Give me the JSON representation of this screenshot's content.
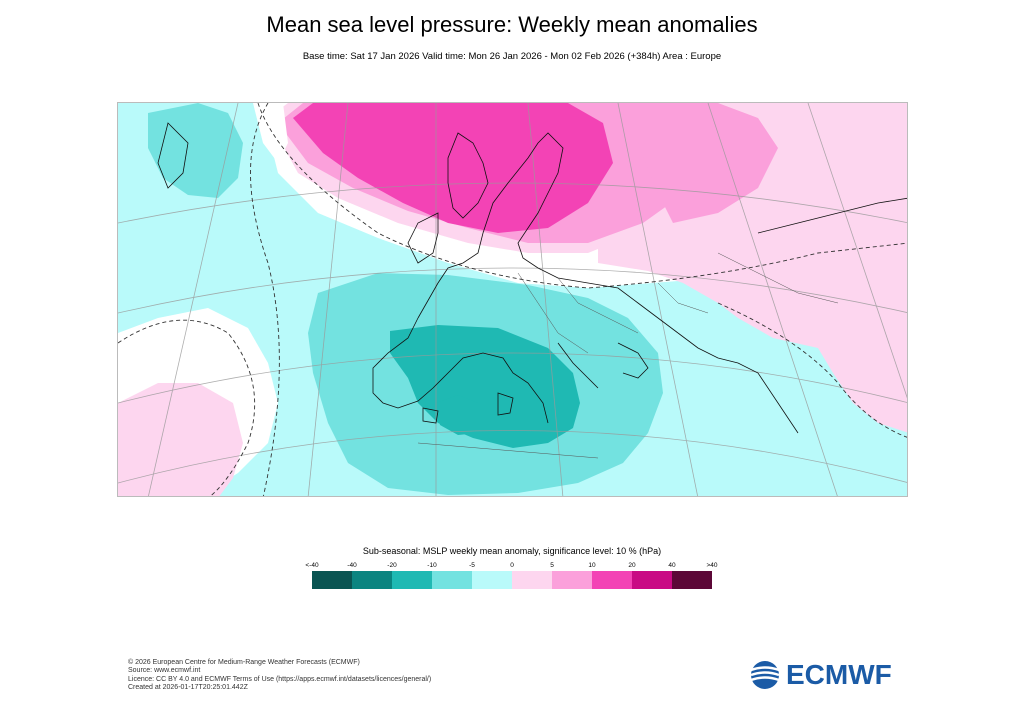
{
  "title": "Mean sea level pressure: Weekly mean anomalies",
  "subtitle": "Base time: Sat 17 Jan 2026 Valid time: Mon 26 Jan 2026 - Mon 02 Feb 2026 (+384h) Area : Europe",
  "map": {
    "area": "Europe",
    "parameter": "MSLP weekly mean anomaly",
    "units": "hPa",
    "features": [
      "positive anomaly over Scandinavia and North Sea",
      "negative anomaly over western Mediterranean and Iberia",
      "negative anomaly near Greenland",
      "positive anomaly over eastern Europe and Russia",
      "positive anomaly over mid-Atlantic"
    ]
  },
  "legend": {
    "title": "Sub-seasonal: MSLP weekly mean anomaly, significance level: 10 % (hPa)",
    "ticks": [
      "<-40",
      "-40",
      "-20",
      "-10",
      "-5",
      "0",
      "5",
      "10",
      "20",
      "40",
      ">40"
    ],
    "colors": [
      "#0a5452",
      "#0b8480",
      "#1fb9b3",
      "#73e2e0",
      "#b9fafa",
      "#fdd6ef",
      "#fba0db",
      "#f343b5",
      "#c90a84",
      "#5c0737"
    ]
  },
  "footer": {
    "lines": [
      "© 2026 European Centre for Medium-Range Weather Forecasts (ECMWF)",
      "Source: www.ecmwf.int",
      "Licence: CC BY 4.0 and ECMWF Terms of Use (https://apps.ecmwf.int/datasets/licences/general/)",
      "Created at 2026-01-17T20:25:01.442Z"
    ]
  },
  "logo": {
    "text": "ECMWF",
    "color": "#1b5ba6"
  }
}
